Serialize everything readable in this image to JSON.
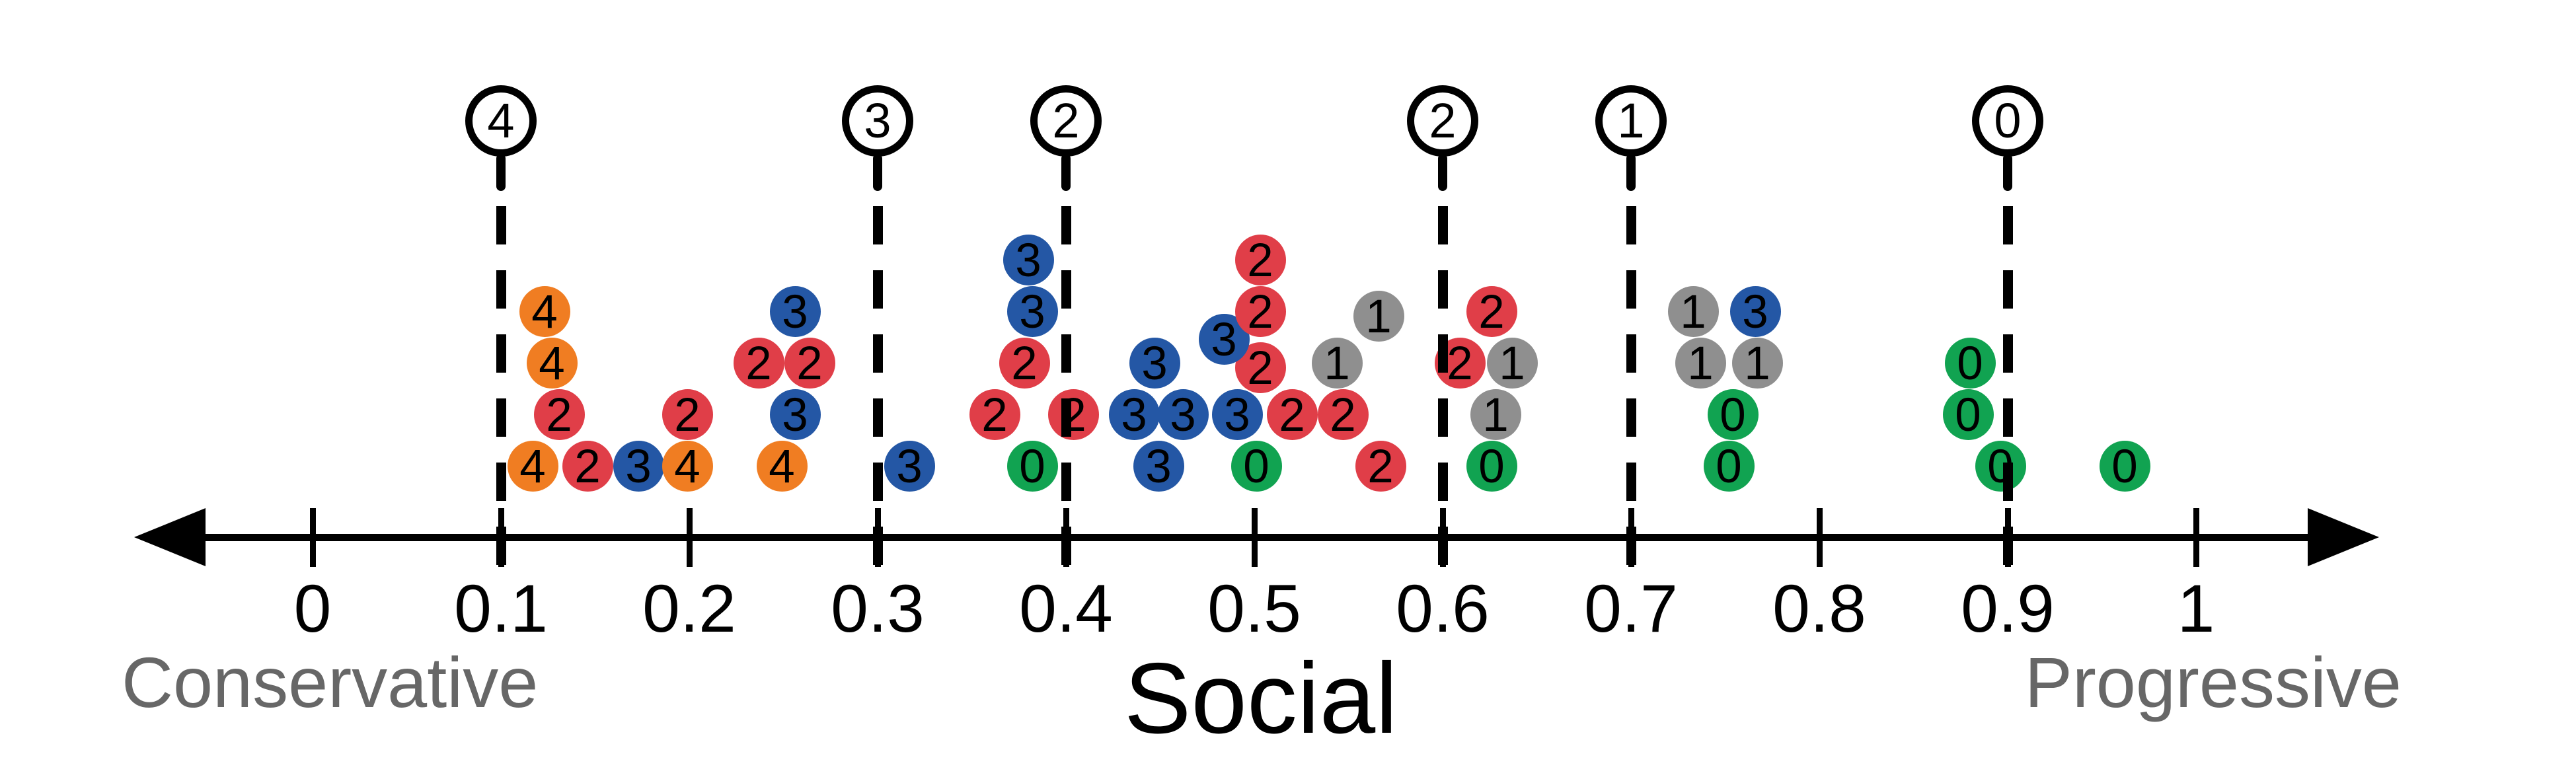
{
  "chart_data": {
    "type": "scatter",
    "subtype": "stacked-dot-plot-on-number-line",
    "title": "Social",
    "xlabel_left": "Conservative",
    "xlabel_right": "Progressive",
    "xlim": [
      -0.09,
      1.09
    ],
    "grid": false,
    "axis_ticks": {
      "values": [
        0,
        0.1,
        0.2,
        0.3,
        0.4,
        0.5,
        0.6,
        0.7,
        0.8,
        0.9,
        1
      ],
      "labels": [
        "0",
        "0.1",
        "0.2",
        "0.3",
        "0.4",
        "0.5",
        "0.6",
        "0.7",
        "0.8",
        "0.9",
        "1"
      ]
    },
    "cluster_markers": [
      {
        "x": 0.1,
        "count_label": "4"
      },
      {
        "x": 0.3,
        "count_label": "3"
      },
      {
        "x": 0.4,
        "count_label": "2"
      },
      {
        "x": 0.6,
        "count_label": "2"
      },
      {
        "x": 0.7,
        "count_label": "1"
      },
      {
        "x": 0.9,
        "count_label": "0"
      }
    ],
    "colors": {
      "orange": "#F07D22",
      "red": "#E03E48",
      "blue": "#2457A5",
      "green": "#11A351",
      "gray": "#8F8F8F"
    },
    "points": [
      {
        "x": 0.117,
        "stack": 0,
        "label": "4",
        "color": "orange"
      },
      {
        "x": 0.146,
        "stack": 0,
        "label": "2",
        "color": "red"
      },
      {
        "x": 0.173,
        "stack": 0,
        "label": "3",
        "color": "blue"
      },
      {
        "x": 0.199,
        "stack": 0,
        "label": "4",
        "color": "orange"
      },
      {
        "x": 0.249,
        "stack": 0,
        "label": "4",
        "color": "orange"
      },
      {
        "x": 0.131,
        "stack": 1,
        "label": "2",
        "color": "red"
      },
      {
        "x": 0.199,
        "stack": 1,
        "label": "2",
        "color": "red"
      },
      {
        "x": 0.256,
        "stack": 1,
        "label": "3",
        "color": "blue"
      },
      {
        "x": 0.127,
        "stack": 2,
        "label": "4",
        "color": "orange"
      },
      {
        "x": 0.237,
        "stack": 2,
        "label": "2",
        "color": "red"
      },
      {
        "x": 0.264,
        "stack": 2,
        "label": "2",
        "color": "red"
      },
      {
        "x": 0.123,
        "stack": 3,
        "label": "4",
        "color": "orange"
      },
      {
        "x": 0.256,
        "stack": 3,
        "label": "3",
        "color": "blue"
      },
      {
        "x": 0.317,
        "stack": 0,
        "label": "3",
        "color": "blue"
      },
      {
        "x": 0.382,
        "stack": 0,
        "label": "0",
        "color": "green"
      },
      {
        "x": 0.362,
        "stack": 1,
        "label": "2",
        "color": "red"
      },
      {
        "x": 0.404,
        "stack": 1,
        "label": "2",
        "color": "red"
      },
      {
        "x": 0.378,
        "stack": 2,
        "label": "2",
        "color": "red"
      },
      {
        "x": 0.382,
        "stack": 3,
        "label": "3",
        "color": "blue"
      },
      {
        "x": 0.38,
        "stack": 4,
        "label": "3",
        "color": "blue"
      },
      {
        "x": 0.449,
        "stack": 0,
        "label": "3",
        "color": "blue"
      },
      {
        "x": 0.501,
        "stack": 0,
        "label": "0",
        "color": "green"
      },
      {
        "x": 0.567,
        "stack": 0,
        "label": "2",
        "color": "red"
      },
      {
        "x": 0.436,
        "stack": 1,
        "label": "3",
        "color": "blue"
      },
      {
        "x": 0.462,
        "stack": 1,
        "label": "3",
        "color": "blue"
      },
      {
        "x": 0.491,
        "stack": 1,
        "label": "3",
        "color": "blue"
      },
      {
        "x": 0.52,
        "stack": 1,
        "label": "2",
        "color": "red"
      },
      {
        "x": 0.547,
        "stack": 1,
        "label": "2",
        "color": "red"
      },
      {
        "x": 0.447,
        "stack": 2,
        "label": "3",
        "color": "blue"
      },
      {
        "x": 0.503,
        "stack": 1.9,
        "label": "2",
        "color": "red"
      },
      {
        "x": 0.544,
        "stack": 2,
        "label": "1",
        "color": "gray"
      },
      {
        "x": 0.484,
        "stack": 2.45,
        "label": "3",
        "color": "blue"
      },
      {
        "x": 0.503,
        "stack": 3,
        "label": "2",
        "color": "red"
      },
      {
        "x": 0.566,
        "stack": 2.9,
        "label": "1",
        "color": "gray"
      },
      {
        "x": 0.503,
        "stack": 4,
        "label": "2",
        "color": "red"
      },
      {
        "x": 0.626,
        "stack": 0,
        "label": "0",
        "color": "green"
      },
      {
        "x": 0.628,
        "stack": 1,
        "label": "1",
        "color": "gray"
      },
      {
        "x": 0.609,
        "stack": 2,
        "label": "2",
        "color": "red"
      },
      {
        "x": 0.637,
        "stack": 2,
        "label": "1",
        "color": "gray"
      },
      {
        "x": 0.626,
        "stack": 3,
        "label": "2",
        "color": "red"
      },
      {
        "x": 0.752,
        "stack": 0,
        "label": "0",
        "color": "green"
      },
      {
        "x": 0.754,
        "stack": 1,
        "label": "0",
        "color": "green"
      },
      {
        "x": 0.737,
        "stack": 2,
        "label": "1",
        "color": "gray"
      },
      {
        "x": 0.767,
        "stack": 2,
        "label": "1",
        "color": "gray"
      },
      {
        "x": 0.733,
        "stack": 3,
        "label": "1",
        "color": "gray"
      },
      {
        "x": 0.766,
        "stack": 3,
        "label": "3",
        "color": "blue"
      },
      {
        "x": 0.896,
        "stack": 0,
        "label": "0",
        "color": "green"
      },
      {
        "x": 0.962,
        "stack": 0,
        "label": "0",
        "color": "green"
      },
      {
        "x": 0.879,
        "stack": 1,
        "label": "0",
        "color": "green"
      },
      {
        "x": 0.88,
        "stack": 2,
        "label": "0",
        "color": "green"
      }
    ]
  }
}
